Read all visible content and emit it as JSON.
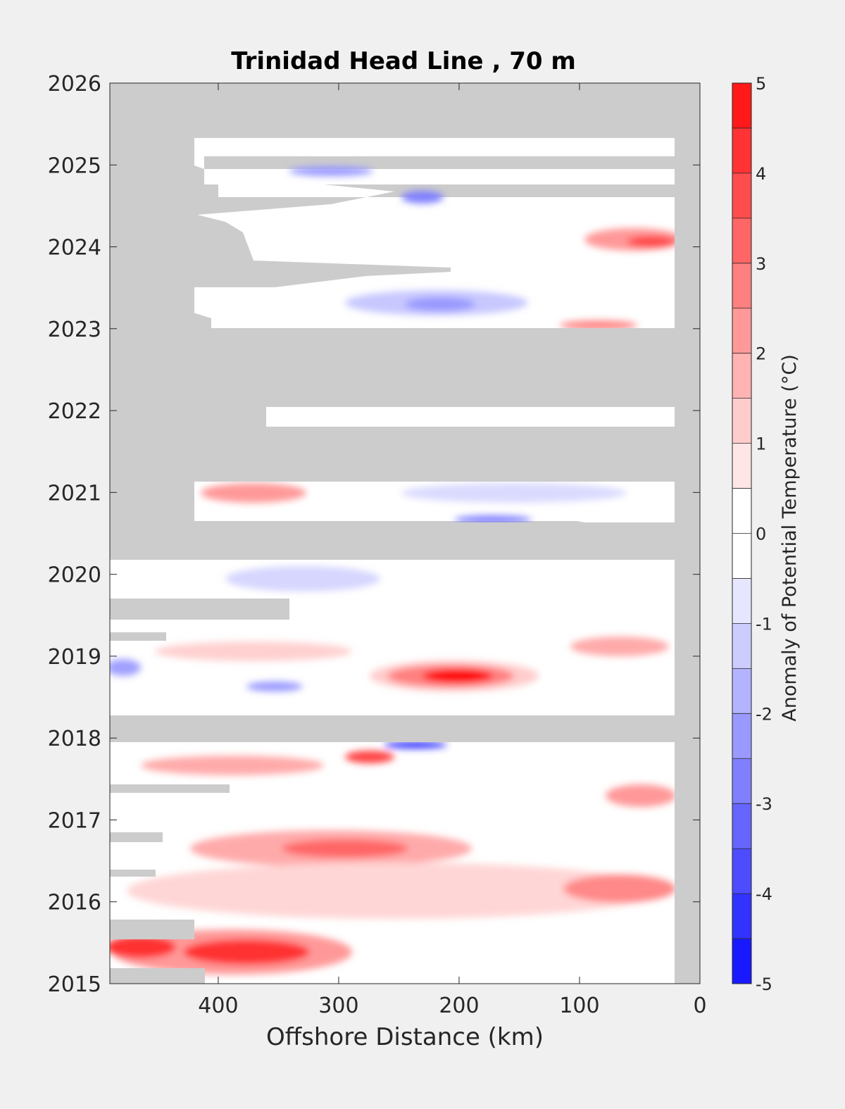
{
  "chart_data": {
    "type": "heatmap",
    "title": "Trinidad Head Line , 70 m",
    "xlabel": "Offshore Distance (km)",
    "ylabel": "",
    "xlim": [
      490,
      0
    ],
    "ylim": [
      2015,
      2026
    ],
    "x_ticks": [
      "400",
      "300",
      "200",
      "100",
      "0"
    ],
    "x_tick_values": [
      400,
      300,
      200,
      100,
      0
    ],
    "y_ticks": [
      "2015",
      "2016",
      "2017",
      "2018",
      "2019",
      "2020",
      "2021",
      "2022",
      "2023",
      "2024",
      "2025",
      "2026"
    ],
    "y_tick_values": [
      2015,
      2016,
      2017,
      2018,
      2019,
      2020,
      2021,
      2022,
      2023,
      2024,
      2025,
      2026
    ],
    "colorbar": {
      "label": "Anomaly of Potential Temperature (°C)",
      "ticks": [
        "-5",
        "-4",
        "-3",
        "-2",
        "-1",
        "0",
        "1",
        "2",
        "3",
        "4",
        "5"
      ],
      "tick_values": [
        -5,
        -4,
        -3,
        -2,
        -1,
        0,
        1,
        2,
        3,
        4,
        5
      ],
      "range": [
        -5,
        5
      ],
      "levels_step": 0.5,
      "colormap": "blue-white-red"
    },
    "missing_data_color": "#cccccc",
    "anomaly_features": [
      {
        "label": "warm",
        "x": 200,
        "y": 2018.75,
        "value": 4.5
      },
      {
        "label": "warm",
        "x": 360,
        "y": 2015.35,
        "value": 3.5
      },
      {
        "label": "warm",
        "x": 470,
        "y": 2015.4,
        "value": 3.0
      },
      {
        "label": "warm",
        "x": 280,
        "y": 2016.65,
        "value": 3.0
      },
      {
        "label": "warm",
        "x": 35,
        "y": 2024.1,
        "value": 3.0
      },
      {
        "label": "warm",
        "x": 30,
        "y": 2016.1,
        "value": 2.5
      },
      {
        "label": "warm",
        "x": 30,
        "y": 2017.25,
        "value": 2.5
      },
      {
        "label": "warm",
        "x": 270,
        "y": 2017.75,
        "value": 2.5
      },
      {
        "label": "warm",
        "x": 390,
        "y": 2021.05,
        "value": 2.0
      },
      {
        "label": "warm",
        "x": 70,
        "y": 2023.05,
        "value": 2.0
      },
      {
        "label": "cool",
        "x": 240,
        "y": 2017.85,
        "value": -3.0
      },
      {
        "label": "cool",
        "x": 240,
        "y": 2024.65,
        "value": -2.0
      },
      {
        "label": "cool",
        "x": 310,
        "y": 2024.9,
        "value": -1.5
      },
      {
        "label": "cool",
        "x": 215,
        "y": 2023.3,
        "value": -1.5
      },
      {
        "label": "cool",
        "x": 160,
        "y": 2020.85,
        "value": -2.0
      },
      {
        "label": "cool",
        "x": 355,
        "y": 2018.65,
        "value": -1.5
      },
      {
        "label": "cool",
        "x": 480,
        "y": 2018.85,
        "value": -1.5
      },
      {
        "label": "cool",
        "x": 330,
        "y": 2019.95,
        "value": -1.0
      }
    ]
  }
}
